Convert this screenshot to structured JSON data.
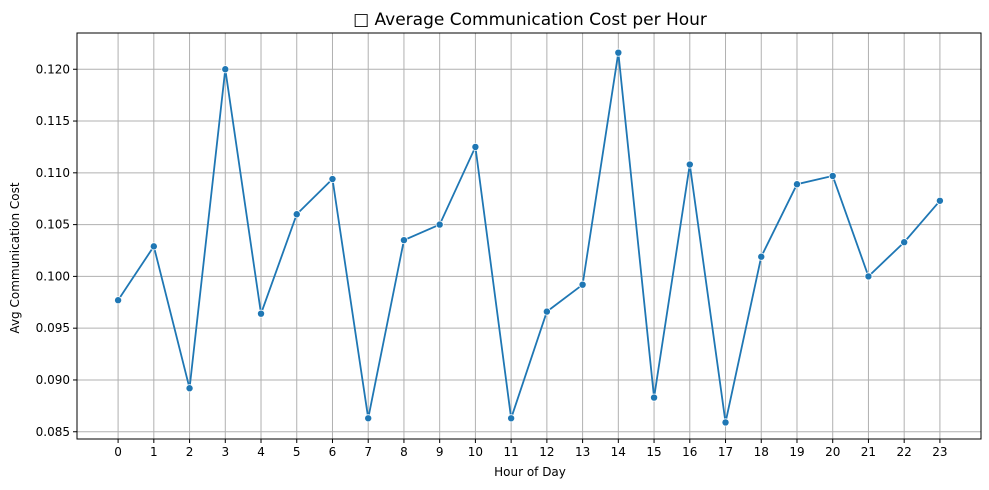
{
  "chart_data": {
    "type": "line",
    "title": "□ Average Communication Cost per Hour",
    "xlabel": "Hour of Day",
    "ylabel": "Avg Communication Cost",
    "x": [
      0,
      1,
      2,
      3,
      4,
      5,
      6,
      7,
      8,
      9,
      10,
      11,
      12,
      13,
      14,
      15,
      16,
      17,
      18,
      19,
      20,
      21,
      22,
      23
    ],
    "y_ticks": [
      "0.085",
      "0.090",
      "0.095",
      "0.100",
      "0.105",
      "0.110",
      "0.115",
      "0.120"
    ],
    "xlim": [
      -1.15,
      24.15
    ],
    "ylim": [
      0.0843,
      0.1235
    ],
    "grid": true,
    "series": [
      {
        "color": "#1f77b4",
        "marker": "circle",
        "values": [
          0.0977,
          0.1029,
          0.0892,
          0.12,
          0.0964,
          0.106,
          0.1094,
          0.0863,
          0.1035,
          0.105,
          0.1125,
          0.0863,
          0.0966,
          0.0992,
          0.1216,
          0.0883,
          0.1108,
          0.0859,
          0.1019,
          0.1089,
          0.1097,
          0.1,
          0.1033,
          0.1073
        ]
      }
    ]
  }
}
